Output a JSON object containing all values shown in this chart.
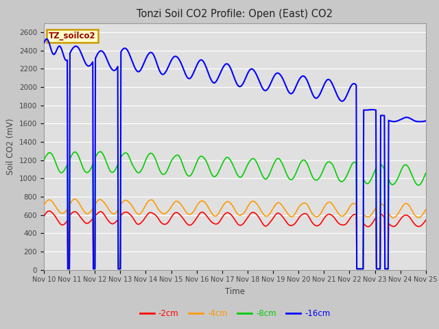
{
  "title": "Tonzi Soil CO2 Profile: Open (East) CO2",
  "xlabel": "Time",
  "ylabel": "Soil CO2 (mV)",
  "ylim": [
    0,
    2700
  ],
  "yticks": [
    0,
    200,
    400,
    600,
    800,
    1000,
    1200,
    1400,
    1600,
    1800,
    2000,
    2200,
    2400,
    2600
  ],
  "xtick_labels": [
    "Nov 10",
    "Nov 11",
    "Nov 12",
    "Nov 13",
    "Nov 14",
    "Nov 15",
    "Nov 16",
    "Nov 17",
    "Nov 18",
    "Nov 19",
    "Nov 20",
    "Nov 21",
    "Nov 22",
    "Nov 23",
    "Nov 24",
    "Nov 25"
  ],
  "fig_bg": "#c8c8c8",
  "plot_bg_top": "#e8e8e8",
  "plot_bg_bot": "#d0d0d0",
  "grid_color": "#ffffff",
  "label_box": "TZ_soilco2",
  "label_box_bg": "#ffffcc",
  "label_box_edge": "#cc9900",
  "label_box_text": "#990000",
  "series_colors": [
    "#ff0000",
    "#ff9900",
    "#00cc00",
    "#0000ff"
  ],
  "series_lw": [
    1.2,
    1.2,
    1.2,
    1.5
  ],
  "legend_labels": [
    "-2cm",
    "-4cm",
    "-8cm",
    "-16cm"
  ]
}
